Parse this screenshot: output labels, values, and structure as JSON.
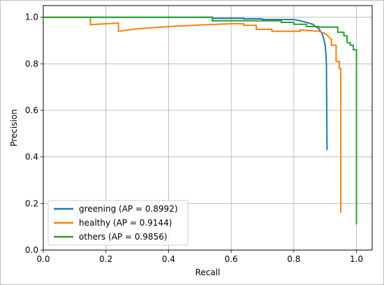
{
  "chart_data": {
    "type": "line",
    "title": "",
    "xlabel": "Recall",
    "ylabel": "Precision",
    "xlim": [
      0.0,
      1.05
    ],
    "ylim": [
      0.0,
      1.05
    ],
    "grid": true,
    "legend_position": "lower-left",
    "xticks": [
      "0.0",
      "0.2",
      "0.4",
      "0.6",
      "0.8",
      "1.0"
    ],
    "yticks": [
      "0.0",
      "0.2",
      "0.4",
      "0.6",
      "0.8",
      "1.0"
    ],
    "series": [
      {
        "name": "greening (AP = 0.8992)",
        "color": "#1f77b4",
        "x": [
          0,
          0.54,
          0.54,
          0.64,
          0.64,
          0.7,
          0.7,
          0.8,
          0.82,
          0.84,
          0.86,
          0.87,
          0.88,
          0.89,
          0.895,
          0.9,
          0.902,
          0.904,
          0.906,
          0.906
        ],
        "y": [
          1.0,
          1.0,
          0.995,
          0.995,
          0.993,
          0.993,
          0.99,
          0.99,
          0.985,
          0.978,
          0.97,
          0.96,
          0.95,
          0.93,
          0.91,
          0.88,
          0.85,
          0.8,
          0.43,
          0.43
        ]
      },
      {
        "name": "healthy (AP = 0.9144)",
        "color": "#ff7f0e",
        "x": [
          0,
          0.15,
          0.15,
          0.24,
          0.24,
          0.3,
          0.4,
          0.5,
          0.6,
          0.64,
          0.64,
          0.68,
          0.68,
          0.73,
          0.73,
          0.82,
          0.82,
          0.88,
          0.9,
          0.92,
          0.92,
          0.935,
          0.935,
          0.945,
          0.945,
          0.95,
          0.95
        ],
        "y": [
          1.0,
          1.0,
          0.968,
          0.975,
          0.94,
          0.95,
          0.96,
          0.967,
          0.972,
          0.972,
          0.965,
          0.965,
          0.948,
          0.948,
          0.94,
          0.94,
          0.945,
          0.94,
          0.93,
          0.905,
          0.88,
          0.88,
          0.81,
          0.81,
          0.78,
          0.78,
          0.16
        ]
      },
      {
        "name": "others (AP = 0.9856)",
        "color": "#2ca02c",
        "x": [
          0,
          0.54,
          0.54,
          0.76,
          0.76,
          0.8,
          0.8,
          0.84,
          0.84,
          0.88,
          0.88,
          0.94,
          0.94,
          0.96,
          0.96,
          0.97,
          0.97,
          0.98,
          0.98,
          0.99,
          0.99,
          1.0,
          1.0
        ],
        "y": [
          1.0,
          1.0,
          0.985,
          0.985,
          0.978,
          0.978,
          0.97,
          0.97,
          0.96,
          0.96,
          0.958,
          0.958,
          0.935,
          0.935,
          0.92,
          0.92,
          0.89,
          0.89,
          0.88,
          0.88,
          0.86,
          0.86,
          0.11
        ]
      }
    ]
  }
}
